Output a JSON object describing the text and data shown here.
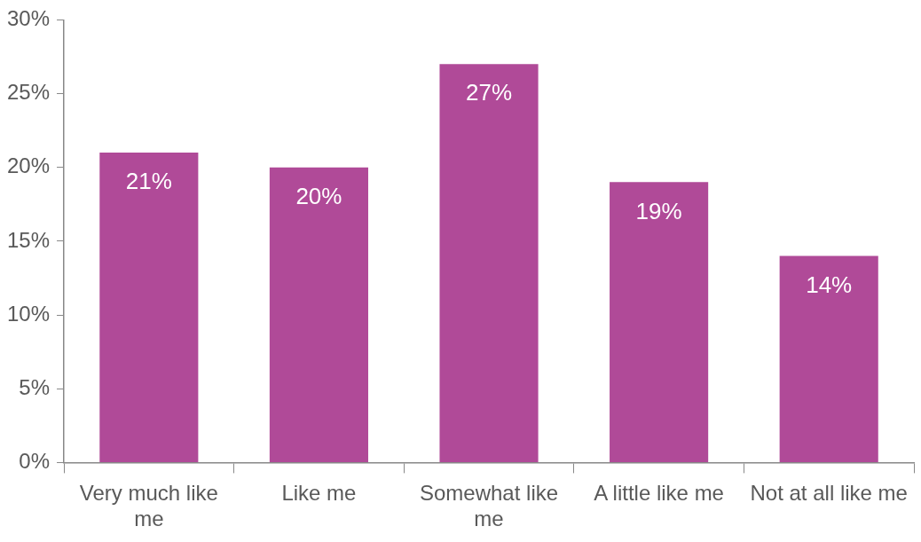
{
  "chart_data": {
    "type": "bar",
    "categories": [
      "Very much like me",
      "Like me",
      "Somewhat like me",
      "A little like me",
      "Not at all like me"
    ],
    "values": [
      21,
      20,
      27,
      19,
      14
    ],
    "value_labels": [
      "21%",
      "20%",
      "27%",
      "19%",
      "14%"
    ],
    "color": "#b04a98",
    "ylim": [
      0,
      30
    ],
    "yticks": [
      {
        "value": 0,
        "label": "0%"
      },
      {
        "value": 5,
        "label": "5%"
      },
      {
        "value": 10,
        "label": "10%"
      },
      {
        "value": 15,
        "label": "15%"
      },
      {
        "value": 20,
        "label": "20%"
      },
      {
        "value": 25,
        "label": "25%"
      },
      {
        "value": 30,
        "label": "30%"
      }
    ],
    "grid": false,
    "legend": false
  }
}
